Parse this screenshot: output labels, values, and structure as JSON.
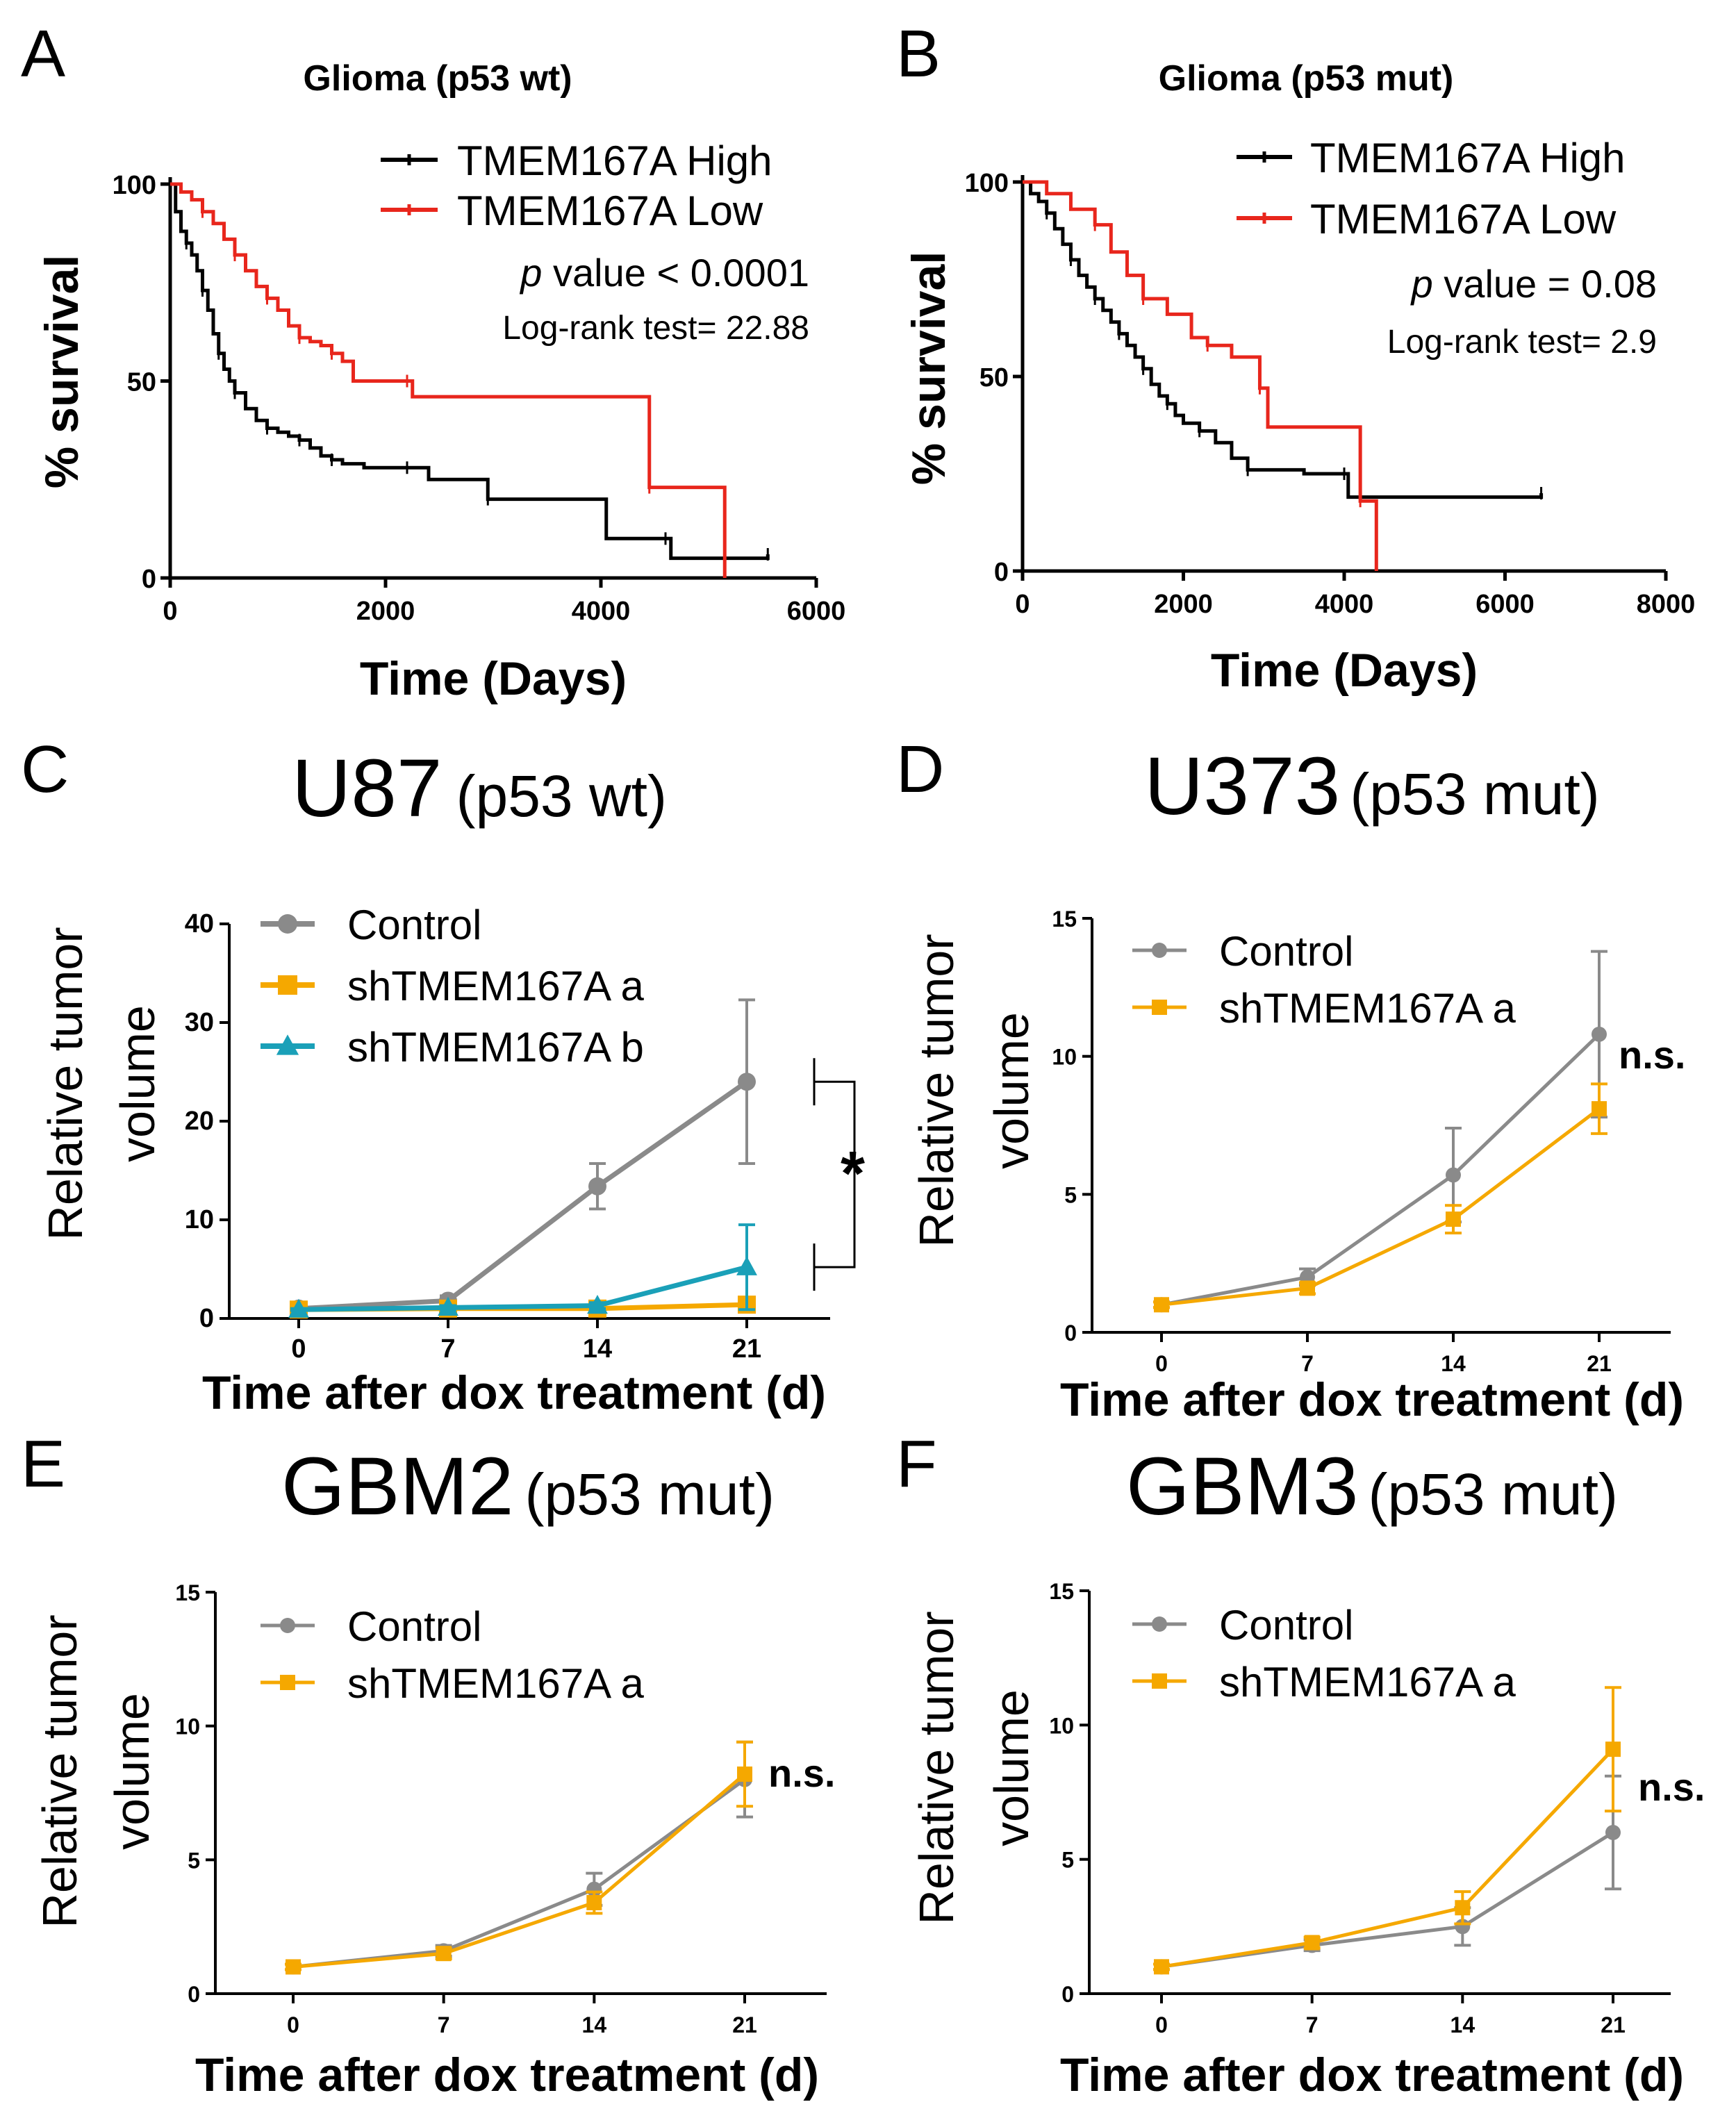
{
  "panels": {
    "A": {
      "label": "A"
    },
    "B": {
      "label": "B"
    },
    "C": {
      "label": "C"
    },
    "D": {
      "label": "D"
    },
    "E": {
      "label": "E"
    },
    "F": {
      "label": "F"
    }
  },
  "colors": {
    "high": "#000000",
    "low": "#e8261c",
    "control": "#8a8a8a",
    "sh_a": "#f5a800",
    "sh_b": "#1aa0b8"
  },
  "chart_data": [
    {
      "id": "A",
      "type": "line",
      "title": "Glioma (p53 wt)",
      "xlabel": "Time (Days)",
      "ylabel": "% survival",
      "xlim": [
        0,
        6000
      ],
      "ylim": [
        0,
        100
      ],
      "xticks": [
        "0",
        "2000",
        "4000",
        "6000"
      ],
      "yticks": [
        "0",
        "50",
        "100"
      ],
      "stat_p_italic": "p",
      "stat_p_rest": " value < 0.0001",
      "stat_logrank": "Log-rank test= 22.88",
      "series": [
        {
          "name": "TMEM167A High",
          "color_key": "high",
          "points": [
            [
              0,
              100
            ],
            [
              50,
              93
            ],
            [
              100,
              88
            ],
            [
              150,
              85
            ],
            [
              200,
              82
            ],
            [
              250,
              78
            ],
            [
              300,
              73
            ],
            [
              350,
              68
            ],
            [
              400,
              62
            ],
            [
              450,
              57
            ],
            [
              500,
              53
            ],
            [
              550,
              50
            ],
            [
              600,
              47
            ],
            [
              700,
              43
            ],
            [
              800,
              40
            ],
            [
              900,
              38
            ],
            [
              1000,
              37
            ],
            [
              1100,
              36
            ],
            [
              1200,
              35
            ],
            [
              1300,
              33
            ],
            [
              1400,
              31
            ],
            [
              1500,
              30
            ],
            [
              1600,
              29
            ],
            [
              1800,
              28
            ],
            [
              2200,
              28
            ],
            [
              2400,
              25
            ],
            [
              2900,
              25
            ],
            [
              2950,
              20
            ],
            [
              4000,
              20
            ],
            [
              4050,
              10
            ],
            [
              4600,
              10
            ],
            [
              4650,
              5
            ],
            [
              5550,
              5
            ],
            [
              5550,
              6
            ]
          ]
        },
        {
          "name": "TMEM167A Low",
          "color_key": "low",
          "points": [
            [
              0,
              100
            ],
            [
              100,
              98
            ],
            [
              200,
              96
            ],
            [
              300,
              93
            ],
            [
              400,
              90
            ],
            [
              500,
              86
            ],
            [
              600,
              82
            ],
            [
              700,
              78
            ],
            [
              800,
              74
            ],
            [
              900,
              71
            ],
            [
              1000,
              68
            ],
            [
              1100,
              64
            ],
            [
              1200,
              61
            ],
            [
              1300,
              60
            ],
            [
              1400,
              59
            ],
            [
              1500,
              57
            ],
            [
              1600,
              55
            ],
            [
              1700,
              50
            ],
            [
              2200,
              50
            ],
            [
              2250,
              46
            ],
            [
              4450,
              46
            ],
            [
              4450,
              23
            ],
            [
              5150,
              23
            ],
            [
              5150,
              0
            ]
          ]
        }
      ]
    },
    {
      "id": "B",
      "type": "line",
      "title": "Glioma (p53 mut)",
      "xlabel": "Time (Days)",
      "ylabel": "% survival",
      "xlim": [
        0,
        8000
      ],
      "ylim": [
        0,
        100
      ],
      "xticks": [
        "0",
        "2000",
        "4000",
        "6000",
        "8000"
      ],
      "yticks": [
        "0",
        "50",
        "100"
      ],
      "stat_p_italic": "p",
      "stat_p_rest": " value = 0.08",
      "stat_logrank": "Log-rank test= 2.9",
      "series": [
        {
          "name": "TMEM167A High",
          "color_key": "high",
          "points": [
            [
              0,
              100
            ],
            [
              100,
              97
            ],
            [
              200,
              95
            ],
            [
              300,
              92
            ],
            [
              400,
              88
            ],
            [
              500,
              84
            ],
            [
              600,
              80
            ],
            [
              700,
              76
            ],
            [
              800,
              73
            ],
            [
              900,
              70
            ],
            [
              1000,
              67
            ],
            [
              1100,
              64
            ],
            [
              1200,
              61
            ],
            [
              1300,
              58
            ],
            [
              1400,
              55
            ],
            [
              1500,
              52
            ],
            [
              1600,
              48
            ],
            [
              1700,
              45
            ],
            [
              1800,
              43
            ],
            [
              1900,
              40
            ],
            [
              2000,
              38
            ],
            [
              2200,
              36
            ],
            [
              2400,
              33
            ],
            [
              2600,
              29
            ],
            [
              2800,
              26
            ],
            [
              3400,
              26
            ],
            [
              3500,
              25
            ],
            [
              4000,
              25
            ],
            [
              4050,
              19
            ],
            [
              6450,
              19
            ],
            [
              6450,
              20
            ]
          ]
        },
        {
          "name": "TMEM167A Low",
          "color_key": "low",
          "points": [
            [
              0,
              100
            ],
            [
              300,
              97
            ],
            [
              600,
              93
            ],
            [
              900,
              89
            ],
            [
              1100,
              82
            ],
            [
              1300,
              76
            ],
            [
              1500,
              70
            ],
            [
              1800,
              66
            ],
            [
              2100,
              60
            ],
            [
              2300,
              58
            ],
            [
              2600,
              55
            ],
            [
              2850,
              55
            ],
            [
              2950,
              47
            ],
            [
              3050,
              37
            ],
            [
              4200,
              37
            ],
            [
              4200,
              18
            ],
            [
              4400,
              18
            ],
            [
              4400,
              0
            ]
          ]
        }
      ]
    },
    {
      "id": "C",
      "type": "line",
      "title_main": "U87",
      "title_sub": "(p53 wt)",
      "xlabel": "Time after dox treatment (d)",
      "ylabel_line1": "Relative tumor",
      "ylabel_line2": "volume",
      "x": [
        0,
        7,
        14,
        21
      ],
      "xticks": [
        "0",
        "7",
        "14",
        "21"
      ],
      "ylim": [
        0,
        40
      ],
      "yticks": [
        "0",
        "10",
        "20",
        "30",
        "40"
      ],
      "significance": "*",
      "series": [
        {
          "name": "Control",
          "color_key": "control",
          "marker": "circle",
          "values": [
            1,
            1.8,
            13.4,
            24
          ],
          "errors": [
            0.2,
            0.5,
            2.3,
            8.3
          ]
        },
        {
          "name": "shTMEM167A a",
          "color_key": "sh_a",
          "marker": "square",
          "values": [
            0.9,
            1.0,
            1.0,
            1.4
          ],
          "errors": [
            0.1,
            0.2,
            0.2,
            0.3
          ]
        },
        {
          "name": "shTMEM167A b",
          "color_key": "sh_b",
          "marker": "triangle",
          "values": [
            0.9,
            1.1,
            1.3,
            5.2
          ],
          "errors": [
            0.1,
            0.2,
            0.3,
            4.3
          ]
        }
      ]
    },
    {
      "id": "D",
      "type": "line",
      "title_main": "U373",
      "title_sub": "(p53 mut)",
      "xlabel": "Time after dox treatment (d)",
      "ylabel_line1": "Relative tumor",
      "ylabel_line2": "volume",
      "x": [
        0,
        7,
        14,
        21
      ],
      "xticks": [
        "0",
        "7",
        "14",
        "21"
      ],
      "ylim": [
        0,
        15
      ],
      "yticks": [
        "0",
        "5",
        "10",
        "15"
      ],
      "significance": "n.s.",
      "series": [
        {
          "name": "Control",
          "color_key": "control",
          "marker": "circle",
          "values": [
            1,
            2.0,
            5.7,
            10.8
          ],
          "errors": [
            0.1,
            0.3,
            1.7,
            3.0
          ]
        },
        {
          "name": "shTMEM167A a",
          "color_key": "sh_a",
          "marker": "square",
          "values": [
            1,
            1.6,
            4.1,
            8.1
          ],
          "errors": [
            0.1,
            0.2,
            0.5,
            0.9
          ]
        }
      ]
    },
    {
      "id": "E",
      "type": "line",
      "title_main": "GBM2",
      "title_sub": "(p53 mut)",
      "xlabel": "Time after dox treatment (d)",
      "ylabel_line1": "Relative tumor",
      "ylabel_line2": "volume",
      "x": [
        0,
        7,
        14,
        21
      ],
      "xticks": [
        "0",
        "7",
        "14",
        "21"
      ],
      "ylim": [
        0,
        15
      ],
      "yticks": [
        "0",
        "5",
        "10",
        "15"
      ],
      "significance": "n.s.",
      "series": [
        {
          "name": "Control",
          "color_key": "control",
          "marker": "circle",
          "values": [
            1,
            1.6,
            3.9,
            8.0
          ],
          "errors": [
            0.1,
            0.2,
            0.6,
            1.4
          ]
        },
        {
          "name": "shTMEM167A a",
          "color_key": "sh_a",
          "marker": "square",
          "values": [
            1,
            1.5,
            3.4,
            8.2
          ],
          "errors": [
            0.1,
            0.2,
            0.4,
            1.2
          ]
        }
      ]
    },
    {
      "id": "F",
      "type": "line",
      "title_main": "GBM3",
      "title_sub": "(p53 mut)",
      "xlabel": "Time after dox treatment (d)",
      "ylabel_line1": "Relative tumor",
      "ylabel_line2": "volume",
      "x": [
        0,
        7,
        14,
        21
      ],
      "xticks": [
        "0",
        "7",
        "14",
        "21"
      ],
      "ylim": [
        0,
        15
      ],
      "yticks": [
        "0",
        "5",
        "10",
        "15"
      ],
      "significance": "n.s.",
      "series": [
        {
          "name": "Control",
          "color_key": "control",
          "marker": "circle",
          "values": [
            1,
            1.8,
            2.5,
            6.0
          ],
          "errors": [
            0.1,
            0.2,
            0.7,
            2.1
          ]
        },
        {
          "name": "shTMEM167A a",
          "color_key": "sh_a",
          "marker": "square",
          "values": [
            1,
            1.9,
            3.2,
            9.1
          ],
          "errors": [
            0.1,
            0.2,
            0.6,
            2.3
          ]
        }
      ]
    }
  ]
}
